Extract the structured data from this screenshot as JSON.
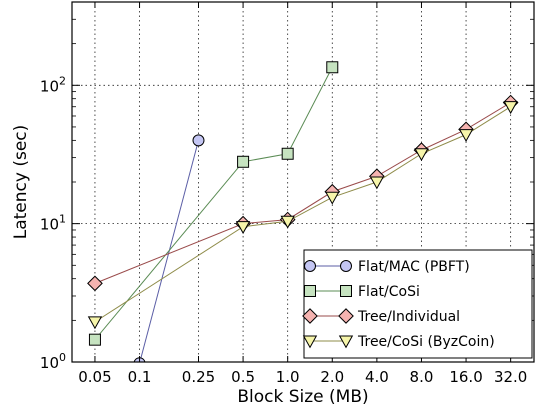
{
  "chart_data": {
    "type": "line",
    "xlabel": "Block Size (MB)",
    "ylabel": "Latency (sec)",
    "x_scale": "log2",
    "y_scale": "log10",
    "categories": [
      "0.05",
      "0.1",
      "0.25",
      "0.5",
      "1.0",
      "2.0",
      "4.0",
      "8.0",
      "16.0",
      "32.0"
    ],
    "x_values": [
      0.05,
      0.1,
      0.25,
      0.5,
      1.0,
      2.0,
      4.0,
      8.0,
      16.0,
      32.0
    ],
    "ylim": [
      1,
      400
    ],
    "y_ticks": [
      {
        "value": 1,
        "base": "10",
        "exp": "0"
      },
      {
        "value": 10,
        "base": "10",
        "exp": "1"
      },
      {
        "value": 100,
        "base": "10",
        "exp": "2"
      }
    ],
    "grid": true,
    "legend_position": "bottom-right",
    "series": [
      {
        "name": "Flat/MAC (PBFT)",
        "marker": "circle",
        "line_color": "#5b5ea6",
        "fill": "#c4c6f3",
        "points": [
          {
            "x": 0.1,
            "y": 0.98
          },
          {
            "x": 0.25,
            "y": 40
          }
        ]
      },
      {
        "name": "Flat/CoSi",
        "marker": "square",
        "line_color": "#5b8c55",
        "fill": "#c6e3c0",
        "points": [
          {
            "x": 0.05,
            "y": 1.45
          },
          {
            "x": 0.5,
            "y": 28
          },
          {
            "x": 1.0,
            "y": 32
          },
          {
            "x": 2.0,
            "y": 135
          }
        ]
      },
      {
        "name": "Tree/Individual",
        "marker": "diamond",
        "line_color": "#9a4b4b",
        "fill": "#f5b3b0",
        "points": [
          {
            "x": 0.05,
            "y": 3.7
          },
          {
            "x": 0.5,
            "y": 10
          },
          {
            "x": 1.0,
            "y": 10.7
          },
          {
            "x": 2.0,
            "y": 17
          },
          {
            "x": 4.0,
            "y": 22
          },
          {
            "x": 8.0,
            "y": 34
          },
          {
            "x": 16.0,
            "y": 48
          },
          {
            "x": 32.0,
            "y": 75
          }
        ]
      },
      {
        "name": "Tree/CoSi (ByzCoin)",
        "marker": "triangle-down",
        "line_color": "#8f8c4a",
        "fill": "#f6f5aa",
        "points": [
          {
            "x": 0.05,
            "y": 1.95
          },
          {
            "x": 0.5,
            "y": 9.5
          },
          {
            "x": 1.0,
            "y": 10.4
          },
          {
            "x": 2.0,
            "y": 15.5
          },
          {
            "x": 4.0,
            "y": 20
          },
          {
            "x": 8.0,
            "y": 32
          },
          {
            "x": 16.0,
            "y": 44
          },
          {
            "x": 32.0,
            "y": 70
          }
        ]
      }
    ]
  }
}
